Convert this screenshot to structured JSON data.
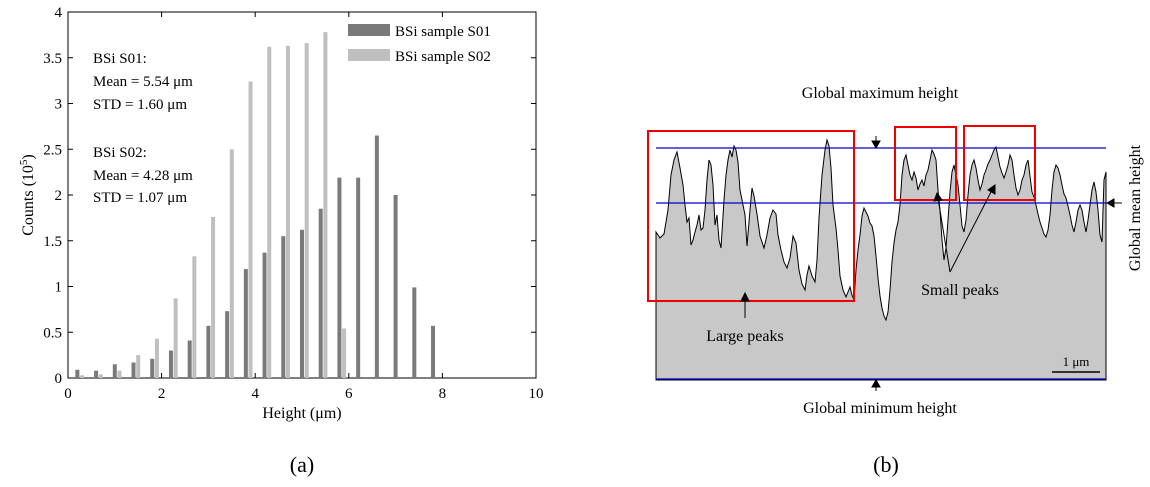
{
  "chart_data": [
    {
      "panel_label": "(a)",
      "type": "bar",
      "xlabel": "Height (μm)",
      "ylabel": "Counts (10",
      "ylabel_sup": "5",
      "ylabel_close": ")",
      "xlim": [
        0,
        10
      ],
      "ylim": [
        0,
        4
      ],
      "xticks": [
        0,
        2,
        4,
        6,
        8,
        10
      ],
      "yticks": [
        0,
        0.5,
        1,
        1.5,
        2,
        2.5,
        3,
        3.5,
        4
      ],
      "legend_position": "top-right",
      "series": [
        {
          "name": "BSi sample S01",
          "color": "#7a7a7a",
          "x": [
            0.2,
            0.6,
            1.0,
            1.4,
            1.8,
            2.2,
            2.6,
            3.0,
            3.4,
            3.8,
            4.2,
            4.6,
            5.0,
            5.4,
            5.8,
            6.2,
            6.6,
            7.0,
            7.4,
            7.8
          ],
          "values": [
            0.09,
            0.08,
            0.15,
            0.17,
            0.21,
            0.3,
            0.41,
            0.57,
            0.73,
            1.19,
            1.37,
            1.55,
            1.62,
            1.85,
            2.19,
            2.19,
            2.65,
            2.0,
            0.99,
            0.57
          ]
        },
        {
          "name": "BSi sample S02",
          "color": "#bfbfbf",
          "x": [
            0.3,
            0.7,
            1.1,
            1.5,
            1.9,
            2.3,
            2.7,
            3.1,
            3.5,
            3.9,
            4.3,
            4.7,
            5.1,
            5.5,
            5.9
          ],
          "values": [
            0.03,
            0.04,
            0.08,
            0.25,
            0.43,
            0.87,
            1.33,
            1.76,
            2.5,
            3.24,
            3.62,
            3.63,
            3.66,
            3.78,
            0.54
          ]
        }
      ],
      "annotations": {
        "s01_title": "BSi S01:",
        "s01_mean": "Mean = 5.54 μm",
        "s01_std": "STD = 1.60 μm",
        "s02_title": "BSi S02:",
        "s02_mean": "Mean = 4.28 μm",
        "s02_std": "STD = 1.07 μm"
      }
    },
    {
      "panel_label": "(b)",
      "type": "area",
      "fill_color": "#c8c8c8",
      "line_color": "#0000cc",
      "box_color": "#ee0000",
      "labels": {
        "global_max": "Global maximum height",
        "global_min": "Global minimum height",
        "global_mean": "Global mean height",
        "large_peaks": "Large peaks",
        "small_peaks": "Small peaks",
        "scale_bar": "1 μm"
      }
    }
  ]
}
